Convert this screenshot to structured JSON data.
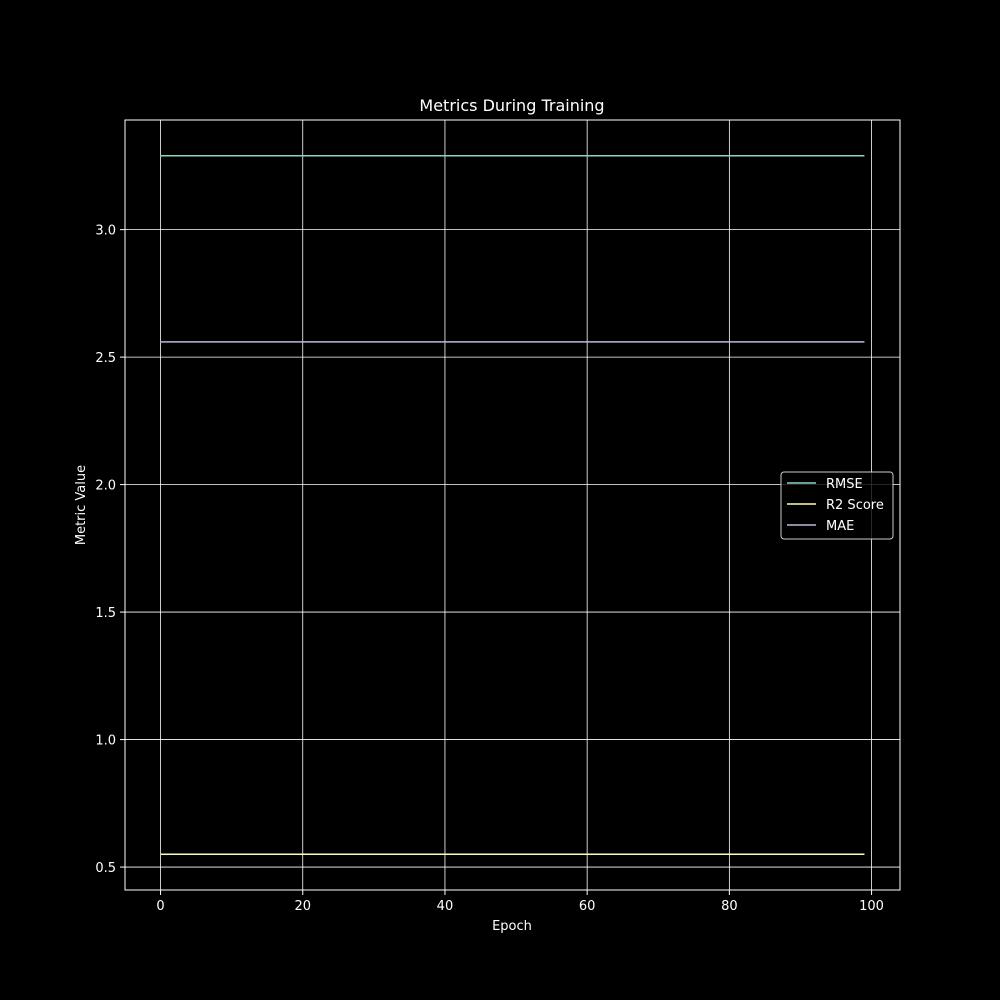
{
  "chart_data": {
    "type": "line",
    "title": "Metrics During Training",
    "xlabel": "Epoch",
    "ylabel": "Metric Value",
    "xlim": [
      -5,
      104
    ],
    "ylim": [
      0.41,
      3.43
    ],
    "xticks": [
      0,
      20,
      40,
      60,
      80,
      100
    ],
    "yticks": [
      0.5,
      1.0,
      1.5,
      2.0,
      2.5,
      3.0
    ],
    "xtick_labels": [
      "0",
      "20",
      "40",
      "60",
      "80",
      "100"
    ],
    "ytick_labels": [
      "0.5",
      "1.0",
      "1.5",
      "2.0",
      "2.5",
      "3.0"
    ],
    "x": [
      0,
      99
    ],
    "grid": true,
    "legend_position": "center-right",
    "background_color": "#000000",
    "series": [
      {
        "name": "RMSE",
        "values": [
          3.29,
          3.29
        ],
        "color": "#8dd3c7"
      },
      {
        "name": "R2 Score",
        "values": [
          0.55,
          0.55
        ],
        "color": "#ffffb3"
      },
      {
        "name": "MAE",
        "values": [
          2.56,
          2.56
        ],
        "color": "#bebada"
      }
    ]
  }
}
